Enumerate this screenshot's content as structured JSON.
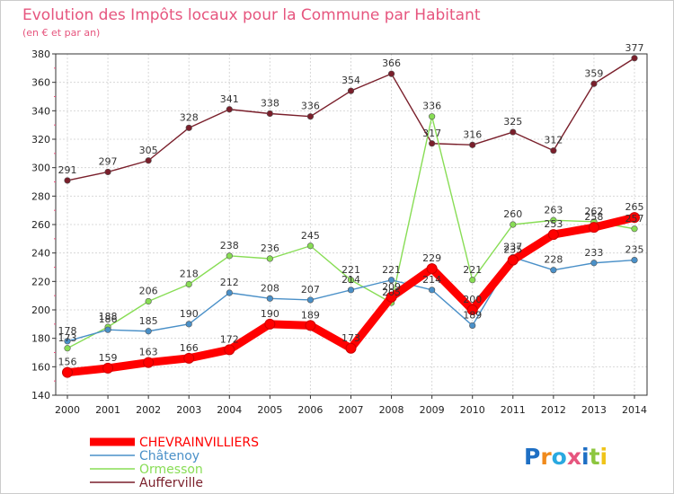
{
  "chart_data": {
    "type": "line",
    "title": "Evolution des Impôts locaux pour la Commune par Habitant",
    "subtitle": "(en € et par an)",
    "x": [
      "2000",
      "2001",
      "2002",
      "2003",
      "2004",
      "2005",
      "2006",
      "2007",
      "2008",
      "2009",
      "2010",
      "2011",
      "2012",
      "2013",
      "2014"
    ],
    "ylim": [
      140,
      380
    ],
    "yticks": [
      140,
      160,
      180,
      200,
      220,
      240,
      260,
      280,
      300,
      320,
      340,
      360,
      380
    ],
    "grid": true,
    "legend_position": "bottom-left",
    "series": [
      {
        "name": "CHEVRAINVILLIERS",
        "color": "#ff0000",
        "values": [
          156,
          159,
          163,
          166,
          172,
          190,
          189,
          173,
          209,
          229,
          200,
          235,
          253,
          258,
          265
        ]
      },
      {
        "name": "Châtenoy",
        "color": "#4a90c8",
        "values": [
          178,
          186,
          185,
          190,
          212,
          208,
          207,
          214,
          221,
          214,
          189,
          237,
          228,
          233,
          235
        ]
      },
      {
        "name": "Ormesson",
        "color": "#88dd55",
        "values": [
          173,
          188,
          206,
          218,
          238,
          236,
          245,
          221,
          205,
          336,
          221,
          260,
          263,
          262,
          257
        ]
      },
      {
        "name": "Aufferville",
        "color": "#7a1f2b",
        "values": [
          291,
          297,
          305,
          328,
          341,
          338,
          336,
          354,
          366,
          317,
          316,
          325,
          312,
          359,
          377
        ]
      }
    ]
  },
  "logo": {
    "text": "Proxiti",
    "colors": [
      "#1e6fc4",
      "#f08a1c",
      "#2aa9e0",
      "#e6557e",
      "#1e6fc4",
      "#8dc63f",
      "#f0c419"
    ]
  }
}
